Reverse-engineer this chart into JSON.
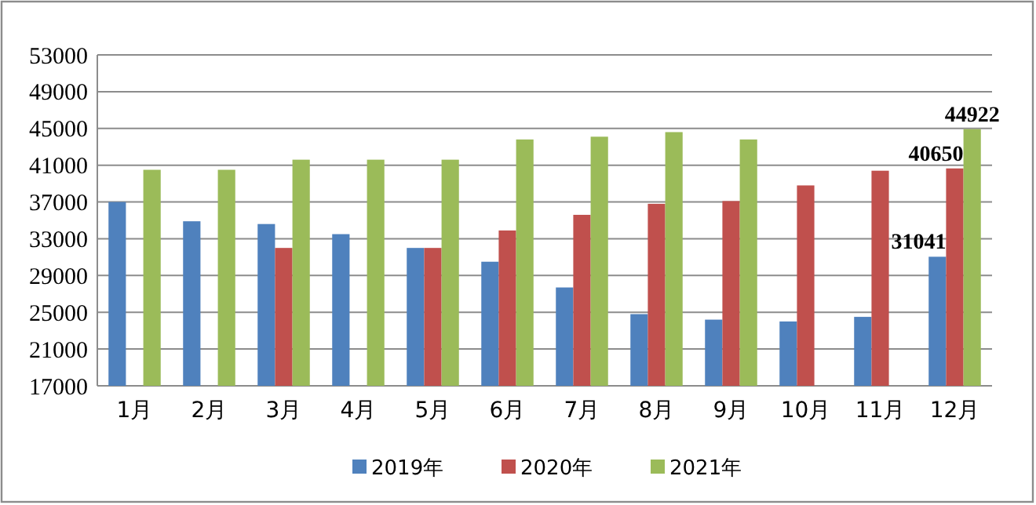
{
  "chart_data": {
    "type": "bar",
    "categories": [
      "1月",
      "2月",
      "3月",
      "4月",
      "5月",
      "6月",
      "7月",
      "8月",
      "9月",
      "10月",
      "11月",
      "12月"
    ],
    "series": [
      {
        "name": "2019年",
        "color": "#4f81bd",
        "values": [
          37000,
          34900,
          34600,
          33500,
          32000,
          30500,
          27700,
          24800,
          24200,
          24000,
          24500,
          31041
        ],
        "value_labels": [
          null,
          null,
          null,
          null,
          null,
          null,
          null,
          null,
          null,
          null,
          null,
          "31041"
        ]
      },
      {
        "name": "2020年",
        "color": "#c0504d",
        "values": [
          null,
          null,
          32000,
          null,
          32000,
          33900,
          35600,
          36800,
          37100,
          38800,
          40400,
          40650
        ],
        "value_labels": [
          null,
          null,
          null,
          null,
          null,
          null,
          null,
          null,
          null,
          null,
          null,
          "40650"
        ]
      },
      {
        "name": "2021年",
        "color": "#9bbb59",
        "values": [
          40500,
          40500,
          41600,
          41600,
          41600,
          43800,
          44100,
          44600,
          43800,
          null,
          null,
          44922
        ],
        "value_labels": [
          null,
          null,
          null,
          null,
          null,
          null,
          null,
          null,
          null,
          null,
          null,
          "44922"
        ]
      }
    ],
    "ylim": [
      17000,
      53000
    ],
    "yticks": [
      17000,
      21000,
      25000,
      29000,
      33000,
      37000,
      41000,
      45000,
      49000,
      53000
    ],
    "grid": "y",
    "legend": "bottom"
  }
}
